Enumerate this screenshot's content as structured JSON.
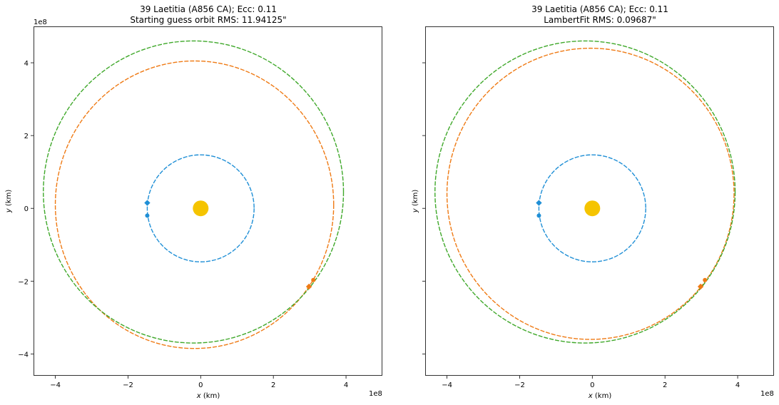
{
  "chart_data": [
    {
      "type": "scatter",
      "title": "39 Laetitia (A856 CA); Ecc: 0.11",
      "subtitle": "Starting guess orbit RMS: 11.94125\"",
      "xlabel": "$x$ (km)",
      "ylabel": "$y$ (km)",
      "xlabel_text": "x",
      "xlabel_unit": " (km)",
      "ylabel_text": "y",
      "ylabel_unit": " (km)",
      "offset_text": "1e8",
      "xlim": [
        -4.6,
        5.0
      ],
      "ylim": [
        -4.6,
        5.0
      ],
      "xticks": [
        -4,
        -2,
        0,
        2,
        4
      ],
      "yticks": [
        -4,
        -2,
        0,
        2,
        4
      ],
      "xtick_labels": [
        "−4",
        "−2",
        "0",
        "2",
        "4"
      ],
      "ytick_labels": [
        "−4",
        "−2",
        "0",
        "2",
        "4"
      ],
      "show_ytick_labels": true,
      "grid": false,
      "sun": {
        "x": 0.0,
        "y": 0.0,
        "color": "#f5c400"
      },
      "orbits": [
        {
          "role": "earth",
          "color": "#1f8fd6",
          "center": [
            0.0,
            0.0
          ],
          "rx": 1.47,
          "ry": 1.47
        },
        {
          "role": "fit",
          "color": "#ef7a14",
          "center": [
            -0.17,
            0.1
          ],
          "rx": 3.83,
          "ry": 3.95
        },
        {
          "role": "reference",
          "color": "#3fa82a",
          "center": [
            -0.2,
            0.45
          ],
          "rx": 4.13,
          "ry": 4.15
        }
      ],
      "markers": [
        {
          "color": "#1f8fd6",
          "shape": "diamond",
          "x": -1.47,
          "y": 0.15
        },
        {
          "color": "#1f8fd6",
          "shape": "circle",
          "x": -1.47,
          "y": -0.2
        },
        {
          "color": "#ef7a14",
          "shape": "diamond",
          "x": 2.98,
          "y": -2.15
        },
        {
          "color": "#ef7a14",
          "shape": "circle",
          "x": 3.1,
          "y": -1.97
        }
      ]
    },
    {
      "type": "scatter",
      "title": "39 Laetitia (A856 CA); Ecc: 0.11",
      "subtitle": "LambertFit RMS: 0.09687\"",
      "xlabel": "$x$ (km)",
      "ylabel": "$y$ (km)",
      "xlabel_text": "x",
      "xlabel_unit": " (km)",
      "ylabel_text": "y",
      "ylabel_unit": " (km)",
      "offset_text": "1e8",
      "xlim": [
        -4.6,
        5.0
      ],
      "ylim": [
        -4.6,
        5.0
      ],
      "xticks": [
        -4,
        -2,
        0,
        2,
        4
      ],
      "yticks": [
        -4,
        -2,
        0,
        2,
        4
      ],
      "xtick_labels": [
        "−4",
        "−2",
        "0",
        "2",
        "4"
      ],
      "ytick_labels": [
        "−4",
        "−2",
        "0",
        "2",
        "4"
      ],
      "show_ytick_labels": false,
      "grid": false,
      "sun": {
        "x": 0.0,
        "y": 0.0,
        "color": "#f5c400"
      },
      "orbits": [
        {
          "role": "earth",
          "color": "#1f8fd6",
          "center": [
            0.0,
            0.0
          ],
          "rx": 1.47,
          "ry": 1.47
        },
        {
          "role": "fit",
          "color": "#ef7a14",
          "center": [
            -0.05,
            0.4
          ],
          "rx": 3.95,
          "ry": 4.0
        },
        {
          "role": "reference",
          "color": "#3fa82a",
          "center": [
            -0.2,
            0.45
          ],
          "rx": 4.13,
          "ry": 4.15
        }
      ],
      "markers": [
        {
          "color": "#1f8fd6",
          "shape": "diamond",
          "x": -1.47,
          "y": 0.15
        },
        {
          "color": "#1f8fd6",
          "shape": "circle",
          "x": -1.47,
          "y": -0.2
        },
        {
          "color": "#ef7a14",
          "shape": "diamond",
          "x": 2.98,
          "y": -2.15
        },
        {
          "color": "#ef7a14",
          "shape": "circle",
          "x": 3.1,
          "y": -1.97
        }
      ]
    }
  ]
}
